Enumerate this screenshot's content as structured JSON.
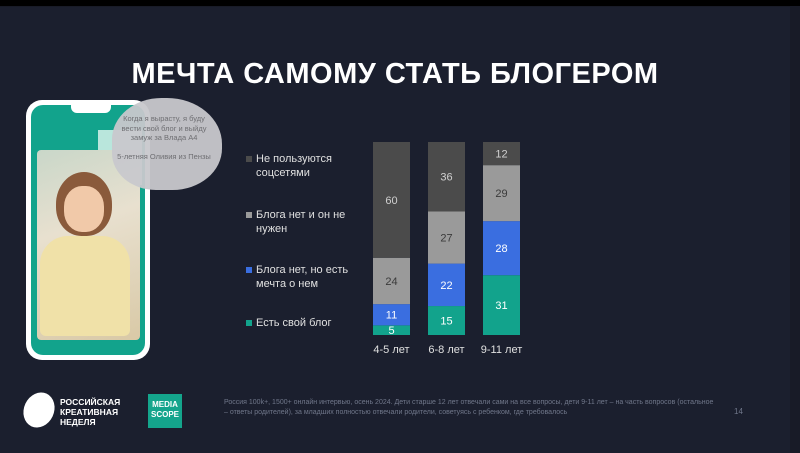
{
  "slide": {
    "title": "МЕЧТА САМОМУ СТАТЬ БЛОГЕРОМ",
    "quote": "Когда я вырасту, я буду вести свой блог и выйду замуж за Влада А4",
    "quote_author": "5-летняя Оливия из Пензы",
    "footer_note": "Россия 100k+, 1500+ онлайн интервью, осень 2024. Дети старше 12 лет отвечали сами на все вопросы, дети 9-11 лет – на часть вопросов (остальное – ответы родителей), за младших полностью отвечали родители, советуясь с ребенком, где требовалось",
    "page_number": "14",
    "logo_rkn": "РОССИЙСКАЯ КРЕАТИВНАЯ НЕДЕЛЯ",
    "logo_mediascope": "MEDIA SCOPE"
  },
  "chart_data": {
    "type": "bar",
    "stacked": true,
    "percent": true,
    "categories": [
      "4-5 лет",
      "6-8 лет",
      "9-11 лет"
    ],
    "series": [
      {
        "name": "Есть свой блог",
        "color": "#12a38c",
        "values": [
          5,
          15,
          31
        ]
      },
      {
        "name": "Блога нет, но есть мечта о нем",
        "color": "#3a6ee0",
        "values": [
          11,
          22,
          28
        ]
      },
      {
        "name": "Блога нет и он не нужен",
        "color": "#9a9a9a",
        "values": [
          24,
          27,
          29
        ]
      },
      {
        "name": "Не пользуются соцсетями",
        "color": "#4b4b4b",
        "values": [
          60,
          36,
          12
        ]
      }
    ],
    "ylim": [
      0,
      100
    ],
    "legend_position": "left"
  }
}
